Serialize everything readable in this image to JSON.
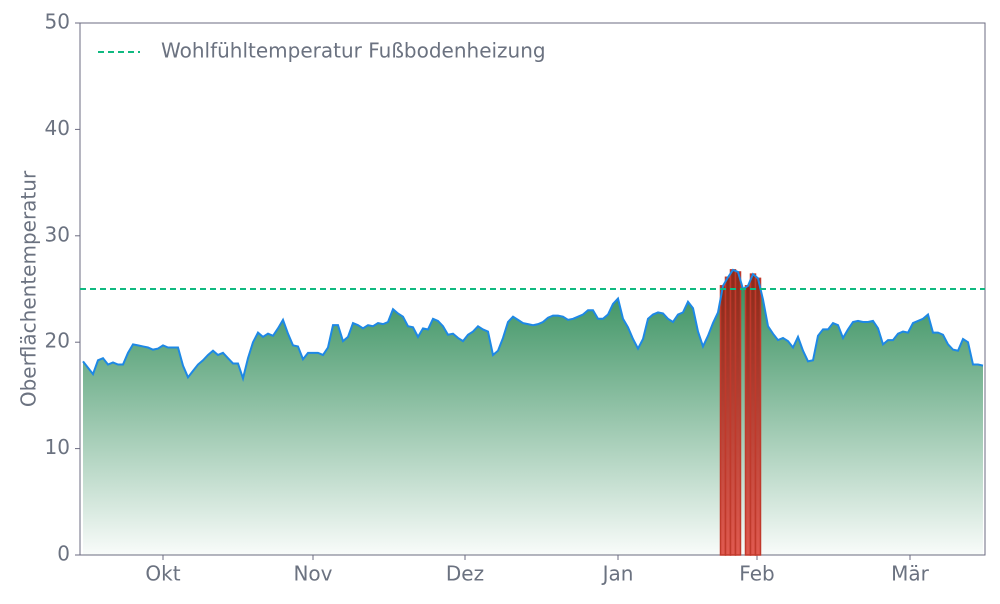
{
  "chart_data": {
    "type": "area",
    "ylabel": "Oberflächentemperatur",
    "x": [
      0,
      1,
      2,
      3,
      4,
      5,
      6,
      7,
      8,
      9,
      10,
      11,
      12,
      13,
      14,
      15,
      16,
      17,
      18,
      19,
      20,
      21,
      22,
      23,
      24,
      25,
      26,
      27,
      28,
      29,
      30,
      31,
      32,
      33,
      34,
      35,
      36,
      37,
      38,
      39,
      40,
      41,
      42,
      43,
      44,
      45,
      46,
      47,
      48,
      49,
      50,
      51,
      52,
      53,
      54,
      55,
      56,
      57,
      58,
      59,
      60,
      61,
      62,
      63,
      64,
      65,
      66,
      67,
      68,
      69,
      70,
      71,
      72,
      73,
      74,
      75,
      76,
      77,
      78,
      79,
      80,
      81,
      82,
      83,
      84,
      85,
      86,
      87,
      88,
      89,
      90,
      91,
      92,
      93,
      94,
      95,
      96,
      97,
      98,
      99,
      100,
      101,
      102,
      103,
      104,
      105,
      106,
      107,
      108,
      109,
      110,
      111,
      112,
      113,
      114,
      115,
      116,
      117,
      118,
      119,
      120,
      121,
      122,
      123,
      124,
      125,
      126,
      127,
      128,
      129,
      130,
      131,
      132,
      133,
      134,
      135,
      136,
      137,
      138,
      139,
      140,
      141,
      142,
      143,
      144,
      145,
      146,
      147,
      148,
      149,
      150,
      151,
      152,
      153,
      154,
      155,
      156,
      157,
      158,
      159,
      160,
      161,
      162,
      163,
      164,
      165,
      166,
      167,
      168,
      169,
      170,
      171,
      172,
      173,
      174,
      175,
      176,
      177,
      178,
      179,
      180
    ],
    "series": [
      {
        "color": "#1e88e5",
        "values": [
          18.2,
          17.6,
          17,
          18.3,
          18.5,
          17.9,
          18.1,
          17.9,
          17.9,
          19,
          19.8,
          19.7,
          19.6,
          19.5,
          19.3,
          19.4,
          19.7,
          19.5,
          19.5,
          19.5,
          17.8,
          16.7,
          17.3,
          17.9,
          18.3,
          18.8,
          19.2,
          18.8,
          19,
          18.5,
          18,
          18,
          16.6,
          18.5,
          20,
          20.9,
          20.5,
          20.8,
          20.6,
          21.3,
          22.1,
          20.8,
          19.7,
          19.6,
          18.4,
          19,
          19,
          19,
          18.8,
          19.5,
          21.6,
          21.6,
          20.1,
          20.5,
          21.8,
          21.6,
          21.3,
          21.6,
          21.5,
          21.8,
          21.7,
          21.9,
          23.1,
          22.7,
          22.4,
          21.5,
          21.4,
          20.5,
          21.3,
          21.2,
          22.2,
          22,
          21.5,
          20.7,
          20.8,
          20.4,
          20.1,
          20.7,
          21,
          21.5,
          21.2,
          21,
          18.8,
          19.2,
          20.4,
          21.9,
          22.4,
          22.1,
          21.8,
          21.7,
          21.6,
          21.7,
          21.9,
          22.3,
          22.5,
          22.5,
          22.4,
          22.1,
          22.2,
          22.4,
          22.6,
          23,
          23,
          22.2,
          22.2,
          22.6,
          23.6,
          24.1,
          22.2,
          21.4,
          20.3,
          19.4,
          20.3,
          22.2,
          22.6,
          22.8,
          22.7,
          22.2,
          21.9,
          22.6,
          22.8,
          23.8,
          23.2,
          21,
          19.6,
          20.6,
          21.8,
          22.8,
          25.3,
          26.1,
          26.8,
          26.6,
          25,
          25.3,
          26.4,
          26,
          24,
          21.5,
          20.8,
          20.2,
          20.4,
          20.1,
          19.5,
          20.5,
          19.2,
          18.2,
          18.3,
          20.6,
          21.2,
          21.2,
          21.8,
          21.6,
          20.4,
          21.2,
          21.9,
          22,
          21.9,
          21.9,
          22,
          21.3,
          19.8,
          20.2,
          20.2,
          20.8,
          21,
          20.9,
          21.8,
          22,
          22.2,
          22.6,
          20.9,
          20.9,
          20.7,
          19.8,
          19.3,
          19.2,
          20.3,
          20,
          17.9,
          17.9,
          17.8
        ]
      }
    ],
    "threshold": {
      "name": "Wohlfühltemperatur Fußbodenheizung",
      "value": 25,
      "color": "#10b981"
    },
    "highlight_color": "#c0392b",
    "xlim": [
      -0.6,
      180.4
    ],
    "xticks": [
      {
        "value": 16,
        "label": "Okt"
      },
      {
        "value": 46,
        "label": "Nov"
      },
      {
        "value": 76.4,
        "label": "Dez"
      },
      {
        "value": 107,
        "label": "Jan"
      },
      {
        "value": 134.8,
        "label": "Feb"
      },
      {
        "value": 165.4,
        "label": "Mär"
      }
    ],
    "ylim": [
      0,
      50
    ],
    "yticks": [
      0,
      10,
      20,
      30,
      40,
      50
    ],
    "legend": "upper left"
  }
}
